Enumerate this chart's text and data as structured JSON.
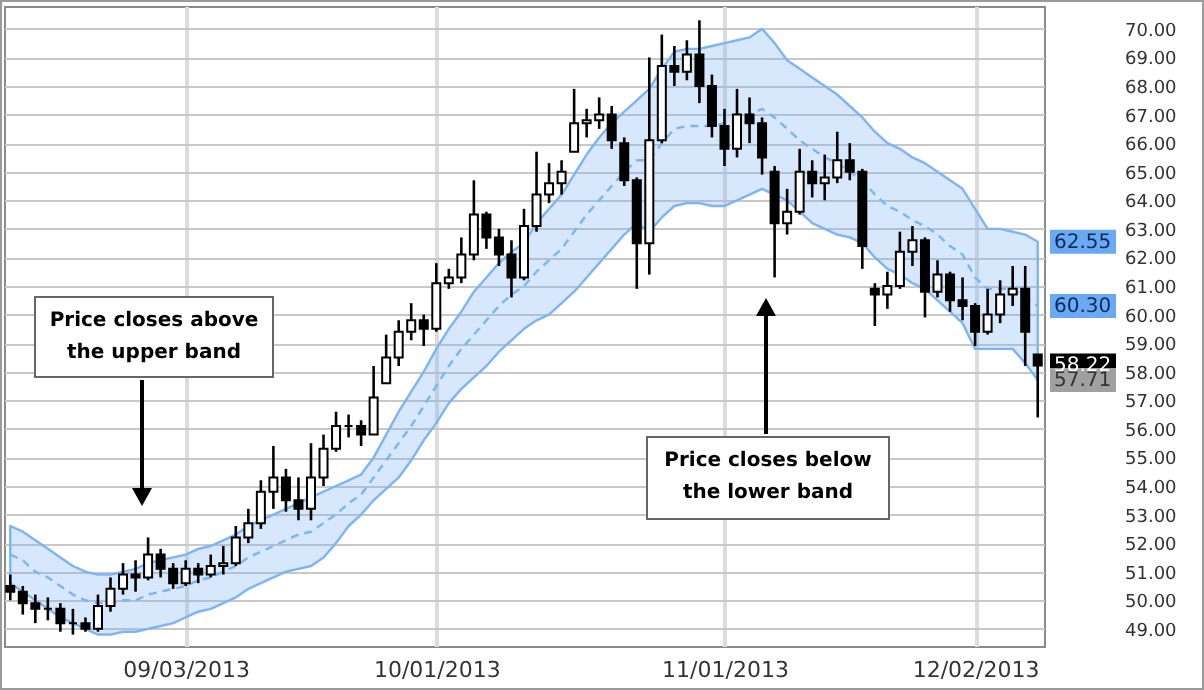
{
  "chart_data": {
    "type": "candlestick",
    "categories": [
      null,
      null,
      null,
      null,
      null,
      null,
      null,
      null,
      null,
      null,
      null,
      null,
      null,
      null,
      "09/03/2013",
      null,
      null,
      null,
      null,
      null,
      null,
      null,
      null,
      null,
      null,
      null,
      null,
      null,
      null,
      null,
      null,
      null,
      null,
      null,
      "10/01/2013",
      null,
      null,
      null,
      null,
      null,
      null,
      null,
      null,
      null,
      null,
      null,
      null,
      null,
      null,
      null,
      null,
      null,
      null,
      null,
      null,
      null,
      null,
      "11/01/2013",
      null,
      null,
      null,
      null,
      null,
      null,
      null,
      null,
      null,
      null,
      null,
      null,
      null,
      null,
      null,
      null,
      null,
      null,
      null,
      "12/02/2013",
      null,
      null,
      null,
      null,
      null
    ],
    "ohlc": [
      [
        50.5,
        50.9,
        50.0,
        50.3
      ],
      [
        50.3,
        50.5,
        49.5,
        49.9
      ],
      [
        49.9,
        50.2,
        49.2,
        49.7
      ],
      [
        49.7,
        50.1,
        49.3,
        49.7
      ],
      [
        49.7,
        49.9,
        48.9,
        49.2
      ],
      [
        49.2,
        49.7,
        48.8,
        49.2
      ],
      [
        49.2,
        49.4,
        48.9,
        49.0
      ],
      [
        49.0,
        50.2,
        48.9,
        49.8
      ],
      [
        49.8,
        50.8,
        49.6,
        50.4
      ],
      [
        50.4,
        51.3,
        50.2,
        50.9
      ],
      [
        50.9,
        51.4,
        50.3,
        50.8
      ],
      [
        50.8,
        52.2,
        50.7,
        51.6
      ],
      [
        51.6,
        51.8,
        50.8,
        51.1
      ],
      [
        51.1,
        51.3,
        50.4,
        50.6
      ],
      [
        50.6,
        51.4,
        50.5,
        51.1
      ],
      [
        51.1,
        51.3,
        50.6,
        50.9
      ],
      [
        50.9,
        51.6,
        50.8,
        51.2
      ],
      [
        51.2,
        51.9,
        50.9,
        51.3
      ],
      [
        51.3,
        52.6,
        51.2,
        52.2
      ],
      [
        52.2,
        53.2,
        52.0,
        52.7
      ],
      [
        52.7,
        54.2,
        52.5,
        53.8
      ],
      [
        53.8,
        55.4,
        53.2,
        54.3
      ],
      [
        54.3,
        54.6,
        53.1,
        53.5
      ],
      [
        53.5,
        54.3,
        52.8,
        53.2
      ],
      [
        53.2,
        55.5,
        52.8,
        54.3
      ],
      [
        54.3,
        55.8,
        54.0,
        55.3
      ],
      [
        55.3,
        56.6,
        55.2,
        56.1
      ],
      [
        56.1,
        56.5,
        55.7,
        56.1
      ],
      [
        56.1,
        56.3,
        55.4,
        55.8
      ],
      [
        55.8,
        58.2,
        55.8,
        57.1
      ],
      [
        57.6,
        59.3,
        57.6,
        58.5
      ],
      [
        58.5,
        59.8,
        58.2,
        59.4
      ],
      [
        59.4,
        60.4,
        59.1,
        59.8
      ],
      [
        59.8,
        60.0,
        58.9,
        59.5
      ],
      [
        59.5,
        61.8,
        59.4,
        61.1
      ],
      [
        61.1,
        61.6,
        60.9,
        61.3
      ],
      [
        61.3,
        62.7,
        61.1,
        62.1
      ],
      [
        62.1,
        64.7,
        61.9,
        63.5
      ],
      [
        63.5,
        63.6,
        62.3,
        62.7
      ],
      [
        62.7,
        63.0,
        61.7,
        62.1
      ],
      [
        62.1,
        62.6,
        60.6,
        61.3
      ],
      [
        61.3,
        63.7,
        61.2,
        63.1
      ],
      [
        63.1,
        65.7,
        62.9,
        64.2
      ],
      [
        64.2,
        65.3,
        63.9,
        64.6
      ],
      [
        64.6,
        65.4,
        64.2,
        65.0
      ],
      [
        65.7,
        67.9,
        65.7,
        66.7
      ],
      [
        66.7,
        67.2,
        66.2,
        66.8
      ],
      [
        66.8,
        67.6,
        66.5,
        67.0
      ],
      [
        67.0,
        67.3,
        65.8,
        66.1
      ],
      [
        66.0,
        66.2,
        64.5,
        64.7
      ],
      [
        64.7,
        64.8,
        60.9,
        62.5
      ],
      [
        62.5,
        69.0,
        61.4,
        66.1
      ],
      [
        66.1,
        69.8,
        66.0,
        68.7
      ],
      [
        68.7,
        69.4,
        68.0,
        68.5
      ],
      [
        68.5,
        69.6,
        68.2,
        69.1
      ],
      [
        69.1,
        70.3,
        67.4,
        68.0
      ],
      [
        68.0,
        68.4,
        66.2,
        66.6
      ],
      [
        66.6,
        67.2,
        65.2,
        65.8
      ],
      [
        65.8,
        67.9,
        65.5,
        67.0
      ],
      [
        67.0,
        67.6,
        66.0,
        66.7
      ],
      [
        66.7,
        66.9,
        64.9,
        65.5
      ],
      [
        65.0,
        65.2,
        61.3,
        63.2
      ],
      [
        63.2,
        64.4,
        62.8,
        63.6
      ],
      [
        63.6,
        65.8,
        63.5,
        65.0
      ],
      [
        65.0,
        65.4,
        64.1,
        64.6
      ],
      [
        64.6,
        65.6,
        64.0,
        64.8
      ],
      [
        64.8,
        66.4,
        64.6,
        65.4
      ],
      [
        65.4,
        66.0,
        64.7,
        65.0
      ],
      [
        65.0,
        65.1,
        61.6,
        62.4
      ],
      [
        60.9,
        61.1,
        59.6,
        60.7
      ],
      [
        60.7,
        61.5,
        60.2,
        61.0
      ],
      [
        61.0,
        62.9,
        60.9,
        62.2
      ],
      [
        62.2,
        63.1,
        61.7,
        62.6
      ],
      [
        62.6,
        62.7,
        59.9,
        60.8
      ],
      [
        60.8,
        61.9,
        60.6,
        61.4
      ],
      [
        61.4,
        61.5,
        60.1,
        60.5
      ],
      [
        60.5,
        61.3,
        59.8,
        60.3
      ],
      [
        60.3,
        60.4,
        58.9,
        59.4
      ],
      [
        59.4,
        60.9,
        59.3,
        60.0
      ],
      [
        60.0,
        61.2,
        59.7,
        60.7
      ],
      [
        60.7,
        61.7,
        60.3,
        60.9
      ],
      [
        60.9,
        61.7,
        58.2,
        59.4
      ],
      [
        58.6,
        58.6,
        56.4,
        58.22
      ]
    ],
    "series": [
      {
        "type": "line",
        "color": "#7db4f5",
        "line_style": "dashed",
        "values": [
          51.6,
          51.4,
          51.0,
          50.8,
          50.5,
          50.2,
          50.0,
          49.9,
          49.9,
          50.0,
          50.0,
          50.2,
          50.3,
          50.4,
          50.5,
          50.7,
          50.8,
          51.0,
          51.2,
          51.5,
          51.7,
          51.9,
          52.1,
          52.3,
          52.4,
          52.7,
          53.0,
          53.4,
          53.7,
          54.3,
          54.9,
          55.5,
          56.1,
          56.8,
          57.5,
          58.2,
          58.8,
          59.3,
          59.8,
          60.3,
          60.7,
          61.0,
          61.5,
          61.9,
          62.3,
          62.9,
          63.5,
          64.0,
          64.5,
          65.0,
          65.4,
          65.4,
          66.0,
          66.5,
          66.6,
          66.6,
          66.6,
          66.7,
          66.8,
          67.0,
          67.2,
          66.9,
          66.5,
          66.1,
          65.8,
          65.5,
          65.3,
          65.0,
          64.7,
          64.2,
          63.8,
          63.6,
          63.3,
          63.1,
          62.8,
          62.4,
          62.1,
          61.3,
          60.9,
          60.9,
          60.9,
          60.6,
          60.3
        ],
        "lower": [
          50.6,
          50.3,
          50.0,
          49.7,
          49.4,
          49.2,
          49.0,
          48.8,
          48.8,
          48.9,
          48.9,
          49.0,
          49.1,
          49.2,
          49.4,
          49.6,
          49.7,
          49.9,
          50.1,
          50.4,
          50.6,
          50.8,
          51.0,
          51.1,
          51.2,
          51.5,
          52.0,
          52.6,
          53.0,
          53.5,
          53.9,
          54.3,
          54.9,
          55.6,
          56.2,
          56.9,
          57.4,
          57.8,
          58.2,
          58.7,
          59.1,
          59.5,
          59.8,
          60.0,
          60.4,
          60.8,
          61.3,
          61.8,
          62.3,
          62.8,
          63.2,
          62.9,
          63.4,
          63.8,
          63.9,
          63.9,
          63.8,
          63.8,
          64.0,
          64.2,
          64.4,
          64.2,
          64.0,
          63.6,
          63.2,
          63.0,
          62.8,
          62.7,
          62.5,
          62.0,
          61.6,
          61.4,
          61.1,
          60.9,
          60.5,
          60.1,
          59.7,
          58.8,
          58.8,
          58.8,
          58.8,
          58.3,
          57.71
        ],
        "upper": [
          52.6,
          52.4,
          52.1,
          51.8,
          51.5,
          51.2,
          51.0,
          50.9,
          50.9,
          51.0,
          51.1,
          51.3,
          51.4,
          51.5,
          51.6,
          51.8,
          51.9,
          52.1,
          52.3,
          52.6,
          52.8,
          53.0,
          53.2,
          53.4,
          53.6,
          53.8,
          54.0,
          54.2,
          54.4,
          55.0,
          55.8,
          56.6,
          57.3,
          58.0,
          58.8,
          59.5,
          60.1,
          60.8,
          61.3,
          61.8,
          62.2,
          62.5,
          63.2,
          63.7,
          64.2,
          64.9,
          65.6,
          66.2,
          66.7,
          67.1,
          67.5,
          67.9,
          68.6,
          69.2,
          69.3,
          69.3,
          69.4,
          69.5,
          69.6,
          69.7,
          70.0,
          69.5,
          68.9,
          68.6,
          68.3,
          68.0,
          67.7,
          67.3,
          66.9,
          66.4,
          66.0,
          65.8,
          65.5,
          65.3,
          65.0,
          64.7,
          64.4,
          63.7,
          63.0,
          63.0,
          62.9,
          62.8,
          62.55
        ]
      }
    ],
    "ylim": [
      48.4,
      70.8
    ],
    "yticks": [
      {
        "value": 49,
        "label": "49.00"
      },
      {
        "value": 50,
        "label": "50.00"
      },
      {
        "value": 51,
        "label": "51.00"
      },
      {
        "value": 52,
        "label": "52.00"
      },
      {
        "value": 53,
        "label": "53.00"
      },
      {
        "value": 54,
        "label": "54.00"
      },
      {
        "value": 55,
        "label": "55.00"
      },
      {
        "value": 56,
        "label": "56.00"
      },
      {
        "value": 57,
        "label": "57.00"
      },
      {
        "value": 58,
        "label": "58.00"
      },
      {
        "value": 59,
        "label": "59.00"
      },
      {
        "value": 60,
        "label": "60.00"
      },
      {
        "value": 61,
        "label": "61.00"
      },
      {
        "value": 62,
        "label": "62.00"
      },
      {
        "value": 63,
        "label": "63.00"
      },
      {
        "value": 64,
        "label": "64.00"
      },
      {
        "value": 65,
        "label": "65.00"
      },
      {
        "value": 66,
        "label": "66.00"
      },
      {
        "value": 67,
        "label": "67.00"
      },
      {
        "value": 68,
        "label": "68.00"
      },
      {
        "value": 69,
        "label": "69.00"
      },
      {
        "value": 70,
        "label": "70.00"
      }
    ],
    "grid": true,
    "annotations": [
      "Price closes above the upper band",
      "Price closes below the lower band",
      "62.55",
      "60.30",
      "58.22",
      "57.71"
    ]
  }
}
